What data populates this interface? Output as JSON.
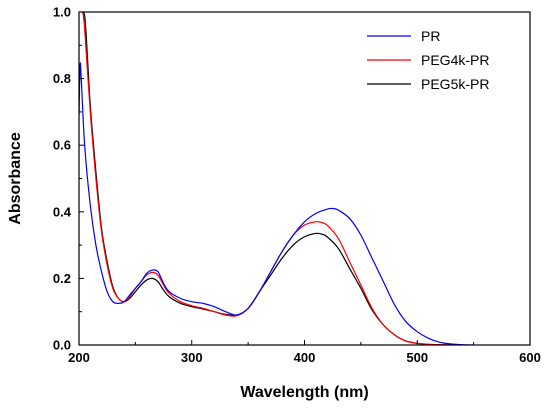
{
  "chart_data": {
    "type": "line",
    "xlabel": "Wavelength (nm)",
    "ylabel": "Absorbance",
    "xlim": [
      200,
      600
    ],
    "ylim": [
      0.0,
      1.0
    ],
    "xticks": [
      200,
      300,
      400,
      500,
      600
    ],
    "yticks": [
      0.0,
      0.2,
      0.4,
      0.6,
      0.8,
      1.0
    ],
    "xtick_labels": [
      "200",
      "300",
      "400",
      "500",
      "600"
    ],
    "ytick_labels": [
      "0.0",
      "0.2",
      "0.4",
      "0.6",
      "0.8",
      "1.0"
    ],
    "grid": false,
    "legend_position": "top-right",
    "series": [
      {
        "name": "PR",
        "color": "#0000ff",
        "x": [
          200,
          201,
          202,
          205,
          210,
          215,
          220,
          225,
          230,
          235,
          240,
          245,
          250,
          255,
          260,
          265,
          270,
          275,
          280,
          290,
          300,
          310,
          320,
          330,
          340,
          350,
          360,
          370,
          380,
          390,
          400,
          410,
          420,
          425,
          430,
          440,
          450,
          460,
          470,
          480,
          490,
          500,
          510,
          520,
          530,
          540,
          550
        ],
        "y": [
          0.69,
          0.84,
          0.8,
          0.6,
          0.42,
          0.3,
          0.22,
          0.16,
          0.13,
          0.125,
          0.13,
          0.15,
          0.17,
          0.19,
          0.215,
          0.225,
          0.22,
          0.185,
          0.16,
          0.14,
          0.13,
          0.125,
          0.115,
          0.1,
          0.09,
          0.11,
          0.16,
          0.22,
          0.28,
          0.33,
          0.37,
          0.395,
          0.408,
          0.41,
          0.405,
          0.38,
          0.33,
          0.26,
          0.19,
          0.12,
          0.07,
          0.04,
          0.02,
          0.008,
          0.003,
          0.001,
          0.0
        ]
      },
      {
        "name": "PEG4k-PR",
        "color": "#ff0000",
        "x": [
          200,
          203,
          205,
          210,
          215,
          220,
          225,
          230,
          235,
          240,
          245,
          250,
          255,
          260,
          265,
          270,
          275,
          280,
          290,
          300,
          310,
          320,
          330,
          340,
          350,
          360,
          370,
          380,
          390,
          400,
          410,
          415,
          420,
          430,
          440,
          450,
          460,
          470,
          480,
          490,
          500,
          510,
          520,
          530
        ],
        "y": [
          1.0,
          1.0,
          0.95,
          0.7,
          0.5,
          0.34,
          0.24,
          0.17,
          0.14,
          0.13,
          0.145,
          0.17,
          0.19,
          0.21,
          0.218,
          0.21,
          0.18,
          0.155,
          0.13,
          0.118,
          0.11,
          0.1,
          0.09,
          0.088,
          0.11,
          0.16,
          0.22,
          0.28,
          0.33,
          0.36,
          0.37,
          0.368,
          0.36,
          0.32,
          0.25,
          0.18,
          0.11,
          0.06,
          0.03,
          0.012,
          0.005,
          0.002,
          0.001,
          0.0
        ]
      },
      {
        "name": "PEG5k-PR",
        "color": "#000000",
        "x": [
          200,
          204,
          206,
          210,
          215,
          220,
          225,
          230,
          235,
          240,
          245,
          250,
          255,
          260,
          265,
          270,
          275,
          280,
          290,
          300,
          310,
          320,
          330,
          340,
          350,
          360,
          370,
          380,
          390,
          400,
          410,
          415,
          420,
          430,
          440,
          450,
          460,
          470,
          480,
          490,
          500,
          510,
          520,
          530
        ],
        "y": [
          1.0,
          1.0,
          0.95,
          0.72,
          0.52,
          0.35,
          0.25,
          0.175,
          0.14,
          0.13,
          0.14,
          0.16,
          0.18,
          0.195,
          0.2,
          0.19,
          0.165,
          0.145,
          0.125,
          0.115,
          0.108,
          0.1,
          0.092,
          0.09,
          0.11,
          0.16,
          0.21,
          0.26,
          0.3,
          0.325,
          0.335,
          0.333,
          0.325,
          0.29,
          0.23,
          0.17,
          0.105,
          0.06,
          0.03,
          0.012,
          0.005,
          0.002,
          0.001,
          0.0
        ]
      }
    ]
  }
}
